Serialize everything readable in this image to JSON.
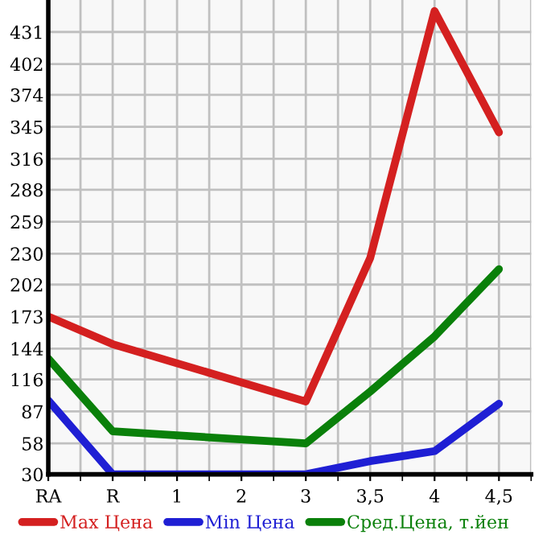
{
  "chart_data": {
    "type": "line",
    "categories": [
      "RA",
      "R",
      "1",
      "2",
      "3",
      "3,5",
      "4",
      "4,5"
    ],
    "series": [
      {
        "name": "Max Цена",
        "color": "#d42020",
        "values": [
          173,
          148,
          null,
          null,
          96,
          226,
          450,
          340
        ]
      },
      {
        "name": "Min Цена",
        "color": "#1f1fd4",
        "values": [
          97,
          30,
          null,
          null,
          30,
          42,
          51,
          94
        ]
      },
      {
        "name": "Сред.Цена, т.йен",
        "color": "#0a800a",
        "values": [
          135,
          69,
          null,
          null,
          58,
          105,
          155,
          216
        ]
      }
    ],
    "ylim": [
      30,
      460
    ],
    "yticks": [
      30,
      58,
      87,
      116,
      144,
      173,
      202,
      230,
      259,
      288,
      316,
      345,
      374,
      402,
      431
    ],
    "grid": true,
    "legend": "bottom",
    "marker": "none",
    "line_style": "solid"
  }
}
